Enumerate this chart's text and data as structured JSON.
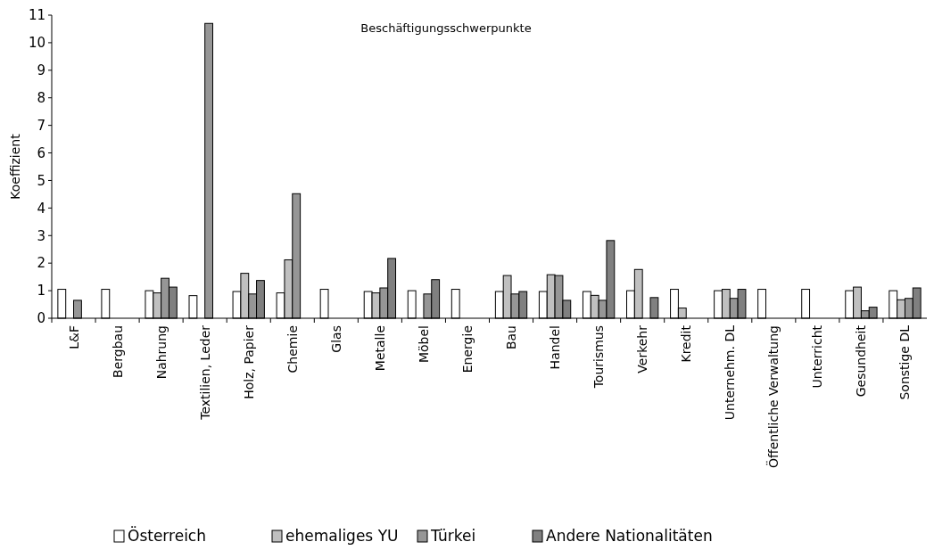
{
  "chart_data": {
    "type": "bar",
    "title": "Beschäftigungsschwerpunkte",
    "ylabel": "Koeffizient",
    "categories": [
      "L&F",
      "Bergbau",
      "Nahrung",
      "Textilien, Leder",
      "Holz, Papier",
      "Chemie",
      "Glas",
      "Metalle",
      "Möbel",
      "Energie",
      "Bau",
      "Handel",
      "Tourismus",
      "Verkehr",
      "Kredit",
      "Unternehm. DL",
      "Öffentliche Verwaltung",
      "Unterricht",
      "Gesundheit",
      "Sonstige DL"
    ],
    "series": [
      {
        "name": "Österreich",
        "color": "#ffffff",
        "values": [
          1.05,
          1.05,
          1.0,
          0.82,
          0.97,
          0.92,
          1.05,
          0.97,
          1.0,
          1.05,
          0.97,
          0.97,
          0.97,
          1.0,
          1.05,
          1.0,
          1.05,
          1.05,
          1.0,
          1.0
        ]
      },
      {
        "name": "ehemaliges YU",
        "color": "#c0c0c0",
        "values": [
          null,
          null,
          0.92,
          null,
          1.63,
          2.12,
          null,
          0.92,
          null,
          null,
          1.55,
          1.58,
          0.83,
          1.77,
          0.37,
          1.05,
          null,
          null,
          1.13,
          0.67
        ]
      },
      {
        "name": "Türkei",
        "color": "#969696",
        "values": [
          0.65,
          null,
          1.45,
          10.7,
          0.88,
          4.52,
          null,
          1.1,
          0.88,
          null,
          0.88,
          1.55,
          0.65,
          null,
          null,
          0.72,
          null,
          null,
          0.27,
          0.72
        ]
      },
      {
        "name": "Andere Nationalitäten",
        "color": "#808080",
        "values": [
          null,
          null,
          1.13,
          null,
          1.37,
          null,
          null,
          2.17,
          1.4,
          null,
          0.97,
          0.65,
          2.82,
          0.75,
          null,
          1.05,
          null,
          null,
          0.4,
          1.1
        ]
      }
    ],
    "ylim": [
      0,
      11
    ],
    "yticks": [
      0,
      1,
      2,
      3,
      4,
      5,
      6,
      7,
      8,
      9,
      10,
      11
    ],
    "grid": false,
    "legend": "bottom"
  }
}
